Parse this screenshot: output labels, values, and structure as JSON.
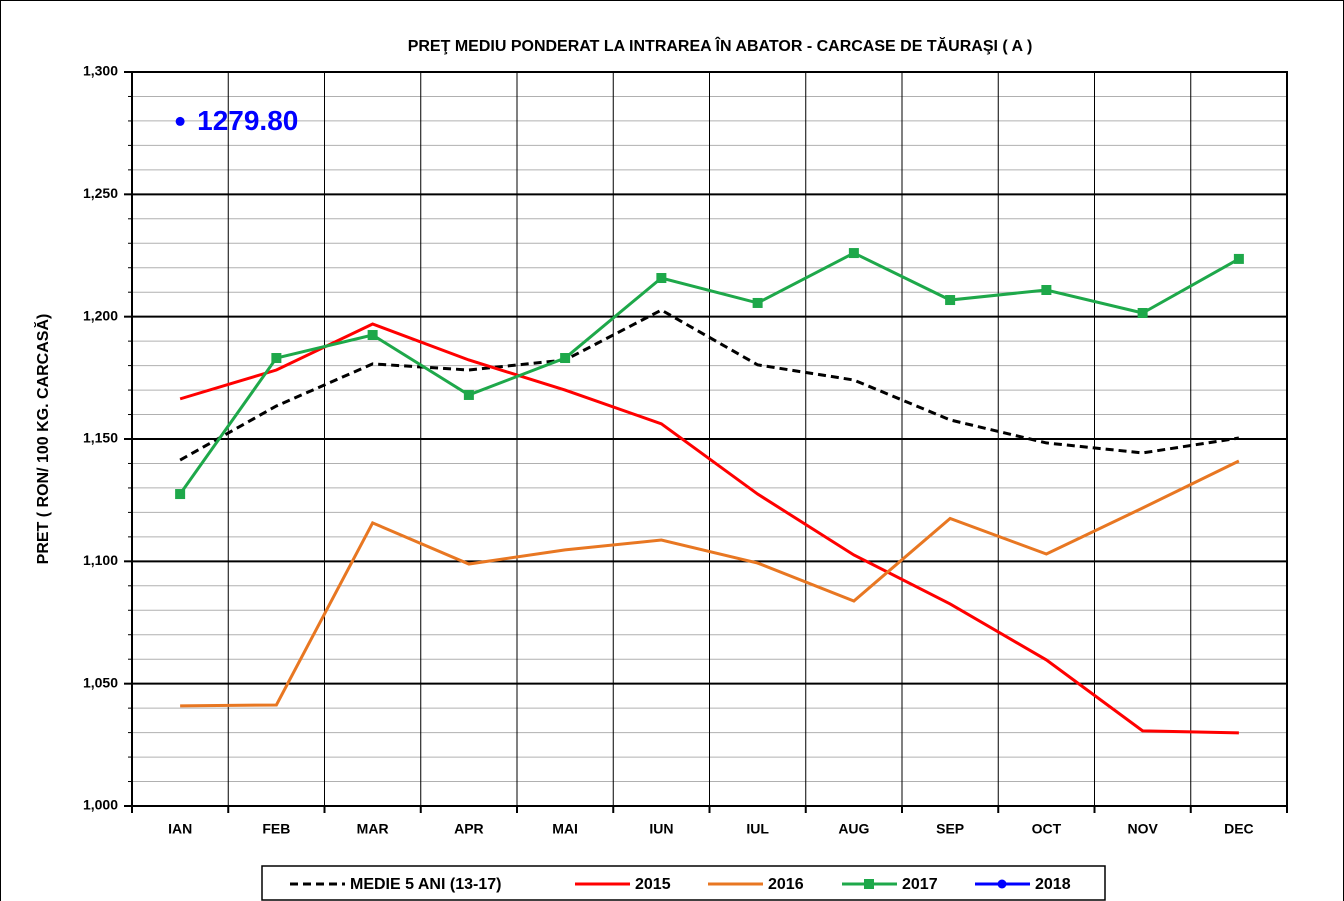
{
  "chart_data": {
    "type": "line",
    "title": "PREŢ MEDIU PONDERAT LA INTRAREA ÎN ABATOR - CARCASE DE TĂURAŞI ( A )",
    "y_label": "PRET ( RON/ 100 KG. CARCASĂ)",
    "categories": [
      "IAN",
      "FEB",
      "MAR",
      "APR",
      "MAI",
      "IUN",
      "IUL",
      "AUG",
      "SEP",
      "OCT",
      "NOV",
      "DEC"
    ],
    "series": [
      {
        "name": "MEDIE 5 ANI (13-17)",
        "color": "#000000",
        "dash": true,
        "marker": "none",
        "values": [
          1141.4,
          1163.5,
          1180.7,
          1178.2,
          1182.3,
          1202.7,
          1180.3,
          1174.1,
          1157.8,
          1148.4,
          1144.3,
          1150.4
        ]
      },
      {
        "name": "2015",
        "color": "#ff0000",
        "dash": false,
        "marker": "none",
        "values": [
          1166.4,
          1178.2,
          1197.0,
          1182.3,
          1170.0,
          1156.2,
          1127.5,
          1102.6,
          1082.6,
          1059.7,
          1030.7,
          1029.9
        ]
      },
      {
        "name": "2016",
        "color": "#e87722",
        "dash": false,
        "marker": "none",
        "values": [
          1040.9,
          1041.3,
          1115.7,
          1098.9,
          1104.7,
          1108.7,
          1099.3,
          1083.8,
          1117.5,
          1103.0,
          1121.8,
          1141.0
        ]
      },
      {
        "name": "2017",
        "color": "#1ea84a",
        "dash": false,
        "marker": "square",
        "values": [
          1127.5,
          1183.1,
          1192.5,
          1168.0,
          1183.1,
          1215.8,
          1205.6,
          1226.0,
          1206.8,
          1210.9,
          1201.5,
          1223.6
        ]
      },
      {
        "name": "2018",
        "color": "#0000ff",
        "dash": false,
        "marker": "circle",
        "values": [
          1279.8,
          null,
          null,
          null,
          null,
          null,
          null,
          null,
          null,
          null,
          null,
          null
        ],
        "value_labels": [
          "1279.80",
          null,
          null,
          null,
          null,
          null,
          null,
          null,
          null,
          null,
          null,
          null
        ]
      }
    ],
    "ylim": [
      1000,
      1300
    ],
    "yticks": [
      {
        "value": 1000,
        "label": "1,000"
      },
      {
        "value": 1050,
        "label": "1,050"
      },
      {
        "value": 1100,
        "label": "1,100"
      },
      {
        "value": 1150,
        "label": "1,150"
      },
      {
        "value": 1200,
        "label": "1,200"
      },
      {
        "value": 1250,
        "label": "1,250"
      },
      {
        "value": 1300,
        "label": "1,300"
      }
    ],
    "grid": true,
    "legend": "bottom"
  }
}
